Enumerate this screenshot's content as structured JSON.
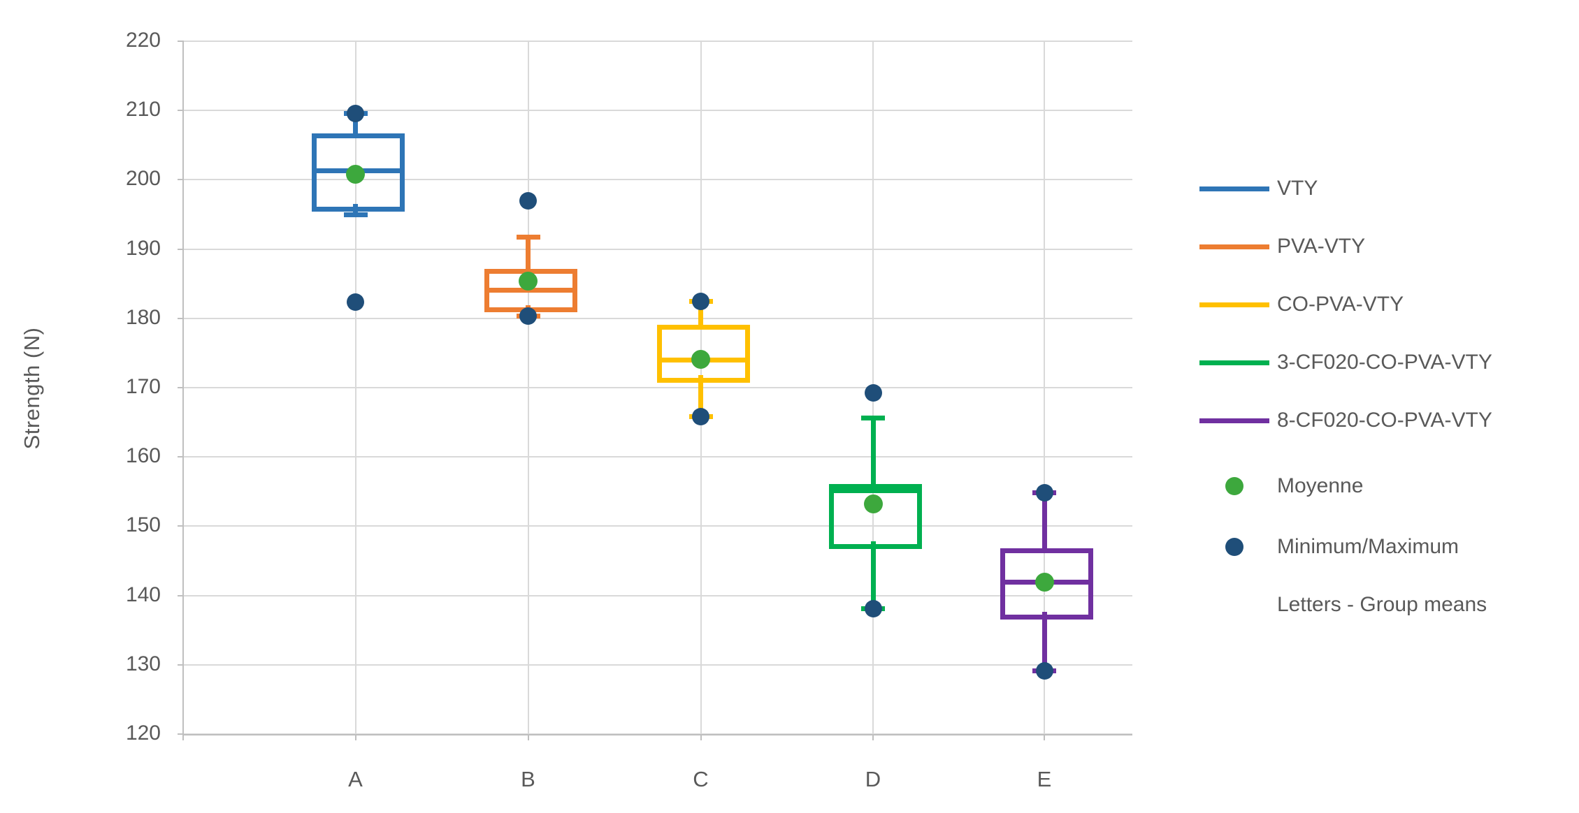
{
  "chart_data": {
    "type": "boxplot",
    "title": "",
    "xlabel": "",
    "ylabel": "Strength (N)",
    "ylim": [
      120,
      220
    ],
    "ytick_step": 10,
    "yticks": [
      220,
      210,
      200,
      190,
      180,
      170,
      160,
      150,
      140,
      130,
      120
    ],
    "categories": [
      "A",
      "B",
      "C",
      "D",
      "E"
    ],
    "grid": "on",
    "legend_position": "right",
    "series": [
      {
        "category": "A",
        "name": "VTY",
        "color": "#2E75B6",
        "min": 182.3,
        "q1": 196.5,
        "median": 201.3,
        "mean": 200.8,
        "q3": 206.3,
        "max": 209.6,
        "whisker_low": 195.0,
        "whisker_high": 209.6
      },
      {
        "category": "B",
        "name": "PVA-VTY",
        "color": "#ED7D31",
        "min": 180.3,
        "q1": 181.9,
        "median": 184.1,
        "mean": 185.4,
        "q3": 186.8,
        "max": 197.0,
        "whisker_low": 180.3,
        "whisker_high": 191.7
      },
      {
        "category": "C",
        "name": "CO-PVA-VTY",
        "color": "#FFC000",
        "min": 165.8,
        "q1": 171.8,
        "median": 174.0,
        "mean": 174.1,
        "q3": 178.7,
        "max": 182.4,
        "whisker_low": 165.8,
        "whisker_high": 182.4
      },
      {
        "category": "D",
        "name": "3-CF020-CO-PVA-VTY",
        "color": "#00B050",
        "min": 138.1,
        "q1": 147.8,
        "median": 155.1,
        "mean": 153.2,
        "q3": 155.7,
        "max": 169.2,
        "whisker_low": 138.1,
        "whisker_high": 165.6
      },
      {
        "category": "E",
        "name": "8-CF020-CO-PVA-VTY",
        "color": "#7030A0",
        "min": 129.1,
        "q1": 137.6,
        "median": 141.9,
        "mean": 141.9,
        "q3": 146.5,
        "max": 154.8,
        "whisker_low": 129.1,
        "whisker_high": 154.8
      }
    ],
    "markers": {
      "mean": {
        "label": "Moyenne",
        "color": "#3DA83D"
      },
      "extremes": {
        "label": "Minimum/Maximum",
        "color": "#1F4E79"
      }
    },
    "legend_note": "Letters - Group means",
    "colors": {
      "gridline": "#D9D9D9",
      "axis": "#BFBFBF",
      "text": "#595959",
      "background": "#FFFFFF"
    }
  }
}
